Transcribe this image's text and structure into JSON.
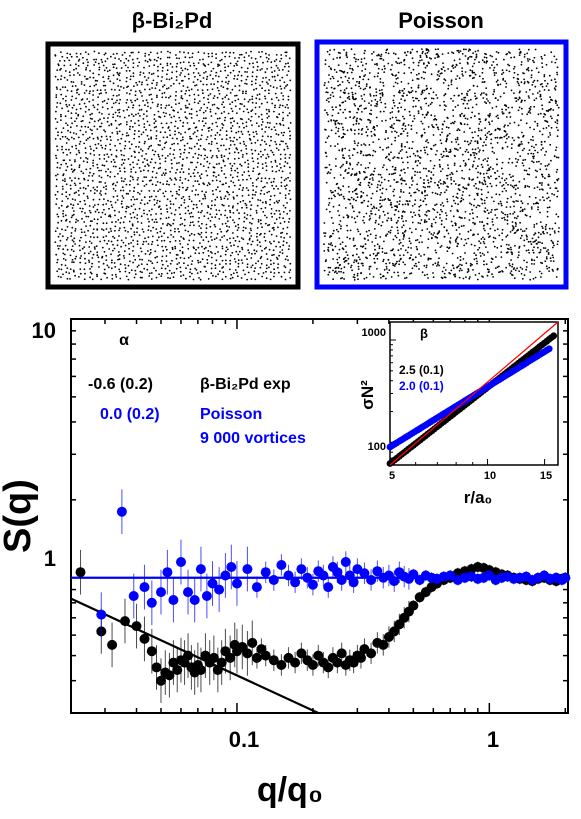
{
  "panels": {
    "left_title": "β-Bi₂Pd",
    "right_title": "Poisson",
    "left_color": "#000000",
    "right_color": "#0000ff"
  },
  "chart_data": [
    {
      "type": "scatter",
      "title": "",
      "panel_label": "α",
      "xlabel": "q/q₀",
      "ylabel": "S(q)",
      "xscale": "log",
      "yscale": "log",
      "xlim": [
        0.022,
        2.05
      ],
      "ylim": [
        0.3,
        10
      ],
      "x_ticks": [
        "0.1",
        "1"
      ],
      "y_ticks": [
        "1",
        "10"
      ],
      "grid": false,
      "annotations": {
        "exp_exponent": "-0.6 (0.2)",
        "exp_label": "β-Bi₂Pd exp",
        "poisson_exponent": "0.0 (0.2)",
        "poisson_label": "Poisson",
        "vortex_count": "9 000 vortices"
      },
      "series": [
        {
          "name": "β-Bi₂Pd exp",
          "color": "#000000",
          "x": [
            0.024,
            0.029,
            0.032,
            0.036,
            0.04,
            0.043,
            0.046,
            0.048,
            0.05,
            0.052,
            0.054,
            0.056,
            0.058,
            0.06,
            0.062,
            0.064,
            0.066,
            0.068,
            0.07,
            0.072,
            0.075,
            0.078,
            0.081,
            0.084,
            0.087,
            0.09,
            0.094,
            0.098,
            0.1,
            0.105,
            0.11,
            0.115,
            0.12,
            0.125,
            0.13,
            0.14,
            0.15,
            0.16,
            0.17,
            0.18,
            0.19,
            0.2,
            0.21,
            0.22,
            0.23,
            0.24,
            0.25,
            0.26,
            0.27,
            0.28,
            0.29,
            0.3,
            0.31,
            0.32,
            0.34,
            0.36,
            0.38,
            0.4,
            0.42,
            0.44,
            0.46,
            0.48,
            0.5,
            0.53,
            0.56,
            0.59,
            0.62,
            0.66,
            0.7,
            0.75,
            0.8,
            0.85,
            0.9,
            0.95,
            1.0,
            1.06,
            1.12,
            1.18,
            1.25,
            1.32,
            1.4,
            1.48,
            1.56,
            1.65,
            1.74,
            1.84,
            1.94,
            2.0
          ],
          "y": [
            1.05,
            0.62,
            0.55,
            0.68,
            0.65,
            0.58,
            0.52,
            0.45,
            0.4,
            0.43,
            0.42,
            0.47,
            0.44,
            0.48,
            0.47,
            0.5,
            0.45,
            0.43,
            0.46,
            0.44,
            0.5,
            0.47,
            0.49,
            0.44,
            0.47,
            0.52,
            0.49,
            0.55,
            0.52,
            0.54,
            0.51,
            0.56,
            0.49,
            0.53,
            0.5,
            0.48,
            0.46,
            0.49,
            0.47,
            0.51,
            0.48,
            0.46,
            0.5,
            0.47,
            0.45,
            0.49,
            0.47,
            0.51,
            0.46,
            0.48,
            0.47,
            0.5,
            0.49,
            0.53,
            0.51,
            0.56,
            0.55,
            0.59,
            0.62,
            0.66,
            0.7,
            0.74,
            0.78,
            0.84,
            0.88,
            0.92,
            0.95,
            0.98,
            1.0,
            1.04,
            1.06,
            1.08,
            1.1,
            1.09,
            1.07,
            1.05,
            1.03,
            1.02,
            1.0,
            0.99,
            0.98,
            0.97,
            0.99,
            1.0,
            0.98,
            0.97,
            0.99,
            1.0
          ]
        },
        {
          "name": "Poisson",
          "color": "#0000ff",
          "x": [
            0.029,
            0.035,
            0.039,
            0.043,
            0.046,
            0.05,
            0.053,
            0.056,
            0.06,
            0.064,
            0.068,
            0.072,
            0.076,
            0.08,
            0.085,
            0.09,
            0.095,
            0.1,
            0.11,
            0.12,
            0.13,
            0.14,
            0.15,
            0.16,
            0.17,
            0.18,
            0.19,
            0.2,
            0.21,
            0.22,
            0.23,
            0.24,
            0.25,
            0.26,
            0.27,
            0.28,
            0.29,
            0.3,
            0.32,
            0.34,
            0.36,
            0.38,
            0.4,
            0.42,
            0.44,
            0.46,
            0.48,
            0.5,
            0.53,
            0.56,
            0.59,
            0.62,
            0.66,
            0.7,
            0.75,
            0.8,
            0.85,
            0.9,
            0.95,
            1.0,
            1.06,
            1.12,
            1.18,
            1.25,
            1.32,
            1.4,
            1.48,
            1.56,
            1.65,
            1.74,
            1.84,
            1.94,
            2.0
          ],
          "y": [
            0.72,
            1.8,
            0.85,
            0.92,
            0.8,
            0.88,
            1.05,
            0.82,
            1.15,
            0.88,
            0.82,
            1.08,
            0.85,
            0.95,
            0.9,
            1.02,
            1.1,
            0.95,
            1.08,
            0.92,
            1.05,
            0.98,
            1.12,
            1.02,
            0.96,
            1.08,
            1.0,
            0.94,
            1.06,
            1.02,
            0.92,
            1.1,
            1.05,
            0.98,
            1.15,
            1.02,
            0.96,
            1.08,
            1.04,
            0.98,
            1.06,
            1.0,
            1.02,
            0.97,
            1.05,
            1.01,
            0.99,
            1.03,
            0.98,
            1.02,
            1.0,
            0.99,
            1.01,
            1.02,
            0.98,
            1.0,
            1.01,
            0.99,
            1.0,
            1.02,
            0.98,
            1.0,
            1.01,
            0.99,
            1.0,
            1.01,
            0.98,
            1.0,
            1.02,
            0.99,
            1.0,
            0.98,
            1.0
          ]
        }
      ],
      "fit_lines": [
        {
          "name": "Poisson fit",
          "color": "#0000ff",
          "x": [
            0.022,
            2.05
          ],
          "y": [
            1.0,
            1.0
          ]
        },
        {
          "name": "β-Bi₂Pd fit",
          "color": "#000000",
          "x": [
            0.022,
            0.21
          ],
          "y": [
            0.83,
            0.3
          ]
        }
      ]
    },
    {
      "type": "scatter",
      "title": "",
      "panel_label": "β",
      "xlabel": "r/a₀",
      "ylabel": "σN²",
      "xscale": "log",
      "yscale": "log",
      "xlim": [
        5,
        16.5
      ],
      "ylim": [
        60,
        1500
      ],
      "x_ticks": [
        "5",
        "10",
        "15"
      ],
      "y_ticks": [
        "100",
        "1000"
      ],
      "annotations": {
        "exp_exponent": "2.5 (0.1)",
        "poisson_exponent": "2.0 (0.1)"
      },
      "series": [
        {
          "name": "β-Bi₂Pd exp",
          "color": "#000000",
          "x": [
            5.0,
            16.0
          ],
          "y": [
            62,
            1100
          ],
          "rendered_as": "dense-line"
        },
        {
          "name": "Poisson",
          "color": "#0000ff",
          "x": [
            5.0,
            15.5
          ],
          "y": [
            90,
            820
          ],
          "rendered_as": "dense-line"
        }
      ],
      "fit_lines": [
        {
          "color": "#ff0000",
          "x": [
            5.0,
            16.5
          ],
          "y": [
            60,
            1500
          ]
        }
      ]
    }
  ]
}
